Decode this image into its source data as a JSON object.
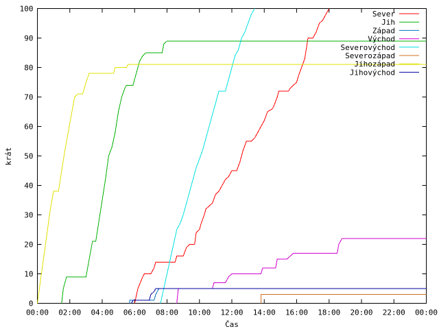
{
  "chart_data": {
    "type": "line",
    "title": "",
    "xlabel": "Čas",
    "ylabel": "krát",
    "xlim": [
      0,
      24
    ],
    "ylim": [
      0,
      100
    ],
    "xticks": [
      {
        "value": 0,
        "label": "00:00"
      },
      {
        "value": 2,
        "label": "02:00"
      },
      {
        "value": 4,
        "label": "04:00"
      },
      {
        "value": 6,
        "label": "06:00"
      },
      {
        "value": 8,
        "label": "08:00"
      },
      {
        "value": 10,
        "label": "10:00"
      },
      {
        "value": 12,
        "label": "12:00"
      },
      {
        "value": 14,
        "label": "14:00"
      },
      {
        "value": 16,
        "label": "16:00"
      },
      {
        "value": 18,
        "label": "18:00"
      },
      {
        "value": 20,
        "label": "20:00"
      },
      {
        "value": 22,
        "label": "22:00"
      },
      {
        "value": 24,
        "label": "00:00"
      }
    ],
    "yticks": [
      {
        "value": 0,
        "label": "0"
      },
      {
        "value": 10,
        "label": "10"
      },
      {
        "value": 20,
        "label": "20"
      },
      {
        "value": 30,
        "label": "30"
      },
      {
        "value": 40,
        "label": "40"
      },
      {
        "value": 50,
        "label": "50"
      },
      {
        "value": 60,
        "label": "60"
      },
      {
        "value": 70,
        "label": "70"
      },
      {
        "value": 80,
        "label": "80"
      },
      {
        "value": 90,
        "label": "90"
      },
      {
        "value": 100,
        "label": "100"
      }
    ],
    "grid": false,
    "legend_position": "top-right",
    "series": [
      {
        "name": "Sever",
        "color": "#ff0000",
        "points": [
          [
            6.0,
            0
          ],
          [
            6.2,
            5
          ],
          [
            6.5,
            9
          ],
          [
            6.6,
            10
          ],
          [
            7.0,
            10
          ],
          [
            7.2,
            12
          ],
          [
            7.3,
            14
          ],
          [
            8.5,
            14
          ],
          [
            8.6,
            16
          ],
          [
            9.0,
            16
          ],
          [
            9.2,
            19
          ],
          [
            9.4,
            20
          ],
          [
            9.7,
            20
          ],
          [
            9.8,
            24
          ],
          [
            10.0,
            25
          ],
          [
            10.1,
            27
          ],
          [
            10.3,
            30
          ],
          [
            10.4,
            32
          ],
          [
            10.6,
            33
          ],
          [
            10.8,
            34
          ],
          [
            11.0,
            37
          ],
          [
            11.2,
            38
          ],
          [
            11.4,
            40
          ],
          [
            11.6,
            42
          ],
          [
            11.8,
            43
          ],
          [
            12.0,
            45
          ],
          [
            12.3,
            45
          ],
          [
            12.5,
            48
          ],
          [
            12.7,
            52
          ],
          [
            12.9,
            55
          ],
          [
            13.2,
            55
          ],
          [
            13.4,
            56
          ],
          [
            13.6,
            58
          ],
          [
            13.8,
            60
          ],
          [
            14.0,
            62
          ],
          [
            14.2,
            65
          ],
          [
            14.5,
            66
          ],
          [
            14.6,
            67
          ],
          [
            14.8,
            70
          ],
          [
            14.9,
            72
          ],
          [
            15.5,
            72
          ],
          [
            15.6,
            73
          ],
          [
            15.8,
            74
          ],
          [
            16.0,
            75
          ],
          [
            16.1,
            77
          ],
          [
            16.3,
            80
          ],
          [
            16.5,
            83
          ],
          [
            16.7,
            90
          ],
          [
            17.0,
            90
          ],
          [
            17.2,
            92
          ],
          [
            17.4,
            95
          ],
          [
            17.6,
            96
          ],
          [
            17.8,
            98
          ],
          [
            18.0,
            100
          ]
        ]
      },
      {
        "name": "Jih",
        "color": "#00b000",
        "points": [
          [
            1.5,
            0
          ],
          [
            1.6,
            5
          ],
          [
            1.8,
            9
          ],
          [
            3.0,
            9
          ],
          [
            3.2,
            15
          ],
          [
            3.4,
            21
          ],
          [
            3.6,
            21
          ],
          [
            3.8,
            28
          ],
          [
            4.0,
            35
          ],
          [
            4.2,
            42
          ],
          [
            4.4,
            50
          ],
          [
            4.6,
            53
          ],
          [
            4.8,
            58
          ],
          [
            5.0,
            65
          ],
          [
            5.2,
            70
          ],
          [
            5.4,
            73
          ],
          [
            5.5,
            74
          ],
          [
            5.9,
            74
          ],
          [
            6.1,
            78
          ],
          [
            6.3,
            82
          ],
          [
            6.5,
            84
          ],
          [
            6.7,
            85
          ],
          [
            7.7,
            85
          ],
          [
            7.8,
            88
          ],
          [
            8.0,
            89
          ],
          [
            24.0,
            89
          ]
        ]
      },
      {
        "name": "Západ",
        "color": "#0070c0",
        "points": [
          [
            5.7,
            0
          ],
          [
            5.7,
            1
          ],
          [
            7.2,
            1
          ],
          [
            7.3,
            3
          ],
          [
            7.5,
            5
          ],
          [
            24.0,
            5
          ]
        ]
      },
      {
        "name": "Východ",
        "color": "#d000d0",
        "points": [
          [
            8.6,
            0
          ],
          [
            8.7,
            5
          ],
          [
            10.8,
            5
          ],
          [
            10.9,
            7
          ],
          [
            11.6,
            7
          ],
          [
            11.8,
            9
          ],
          [
            12.0,
            10
          ],
          [
            13.8,
            10
          ],
          [
            13.9,
            12
          ],
          [
            14.7,
            12
          ],
          [
            14.8,
            15
          ],
          [
            15.4,
            15
          ],
          [
            15.6,
            16
          ],
          [
            15.8,
            17
          ],
          [
            18.5,
            17
          ],
          [
            18.6,
            20
          ],
          [
            18.8,
            22
          ],
          [
            24.0,
            22
          ]
        ]
      },
      {
        "name": "Severovýchod",
        "color": "#00e0e0",
        "points": [
          [
            7.6,
            0
          ],
          [
            7.8,
            5
          ],
          [
            8.0,
            10
          ],
          [
            8.2,
            15
          ],
          [
            8.4,
            20
          ],
          [
            8.6,
            25
          ],
          [
            8.8,
            27
          ],
          [
            9.0,
            30
          ],
          [
            9.2,
            34
          ],
          [
            9.4,
            38
          ],
          [
            9.6,
            42
          ],
          [
            9.8,
            46
          ],
          [
            10.0,
            49
          ],
          [
            10.2,
            52
          ],
          [
            10.4,
            56
          ],
          [
            10.6,
            60
          ],
          [
            10.8,
            64
          ],
          [
            11.0,
            68
          ],
          [
            11.2,
            72
          ],
          [
            11.6,
            72
          ],
          [
            11.8,
            76
          ],
          [
            12.0,
            80
          ],
          [
            12.2,
            84
          ],
          [
            12.4,
            86
          ],
          [
            12.6,
            90
          ],
          [
            12.8,
            92
          ],
          [
            13.0,
            95
          ],
          [
            13.2,
            98
          ],
          [
            13.4,
            100
          ]
        ]
      },
      {
        "name": "Severozápad",
        "color": "#d07020",
        "points": [
          [
            13.8,
            0
          ],
          [
            13.8,
            3
          ],
          [
            24.0,
            3
          ]
        ]
      },
      {
        "name": "Jihozápad",
        "color": "#e0e000",
        "points": [
          [
            0.0,
            0
          ],
          [
            0.2,
            8
          ],
          [
            0.4,
            16
          ],
          [
            0.6,
            24
          ],
          [
            0.8,
            32
          ],
          [
            1.0,
            38
          ],
          [
            1.3,
            38
          ],
          [
            1.5,
            45
          ],
          [
            1.7,
            52
          ],
          [
            1.9,
            58
          ],
          [
            2.1,
            64
          ],
          [
            2.3,
            70
          ],
          [
            2.5,
            71
          ],
          [
            2.8,
            71
          ],
          [
            3.0,
            75
          ],
          [
            3.2,
            78
          ],
          [
            4.7,
            78
          ],
          [
            4.8,
            80
          ],
          [
            5.5,
            80
          ],
          [
            5.6,
            81
          ],
          [
            24.0,
            81
          ]
        ]
      },
      {
        "name": "Jihovýchod",
        "color": "#0000a0",
        "points": [
          [
            5.8,
            0
          ],
          [
            5.9,
            1
          ],
          [
            6.9,
            1
          ],
          [
            7.0,
            3
          ],
          [
            7.2,
            4
          ],
          [
            7.3,
            5
          ],
          [
            24.0,
            5
          ]
        ]
      }
    ]
  }
}
